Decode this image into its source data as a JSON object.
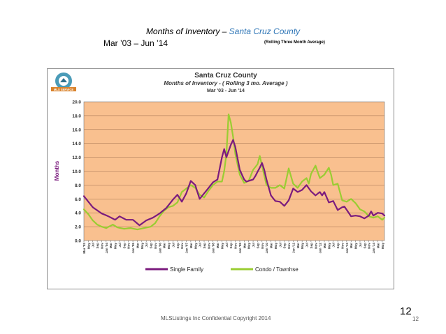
{
  "slide": {
    "title_prefix": "Months of Inventory – ",
    "title_county": "Santa Cruz County",
    "date_range": "Mar ’03 – Jun ’14",
    "rolling_note": "(Rolling Three Month Average)",
    "footer": "MLSListings Inc Confidential Copyright 2014",
    "page_number_large": "12",
    "page_number_small": "12"
  },
  "logo": {
    "text": "MLS SERVICE"
  },
  "colors": {
    "plot_bg": "#F9C08F",
    "single_family": "#7B1B7E",
    "condo": "#9ACD32",
    "grid": "#A07050"
  },
  "chart_data": {
    "type": "line",
    "title": "Santa Cruz County",
    "subtitle": "Months of Inventory - ( Rolling 3 mo. Average )",
    "subtitle2": "Mar '03 - Jun '14",
    "xlabel": "",
    "ylabel": "Months",
    "ylim": [
      0,
      20
    ],
    "yticks": [
      "0.0",
      "2.0",
      "4.0",
      "6.0",
      "8.0",
      "10.0",
      "12.0",
      "14.0",
      "16.0",
      "18.0",
      "20.0"
    ],
    "x_tick_labels": [
      "Mar '03",
      "May",
      "Jul",
      "Sep",
      "Nov",
      "Jan '04",
      "Mar",
      "May",
      "Jul",
      "Sep",
      "Nov",
      "Jan '05",
      "Mar",
      "May",
      "Jul",
      "Sep",
      "Nov",
      "Jan '06",
      "Mar",
      "May",
      "Jul",
      "Sep",
      "Nov",
      "Jan '07",
      "Mar",
      "May",
      "Jul",
      "Sep",
      "Nov",
      "Jan '08",
      "Mar",
      "May",
      "Jul",
      "Sep",
      "Nov",
      "Jan '09",
      "Mar",
      "May",
      "Jul",
      "Sep",
      "Nov",
      "Jan '10",
      "Mar",
      "May",
      "Jul",
      "Sep",
      "Nov",
      "Jan '11",
      "Mar",
      "May",
      "Jul",
      "Sep",
      "Nov",
      "Jan '12",
      "Mar",
      "May",
      "Jul",
      "Sep",
      "Nov",
      "Jan '13",
      "Mar",
      "May",
      "Jul",
      "Sep",
      "Nov",
      "Jan '14",
      "Mar",
      "May"
    ],
    "n_points": 136,
    "legend": "bottom",
    "series": [
      {
        "name": "Single Family",
        "color": "#7B1B7E",
        "key_points": [
          [
            0,
            6.4
          ],
          [
            4,
            4.8
          ],
          [
            8,
            3.9
          ],
          [
            11,
            3.5
          ],
          [
            14,
            3.0
          ],
          [
            16,
            3.5
          ],
          [
            19,
            3.0
          ],
          [
            22,
            3.0
          ],
          [
            25,
            2.2
          ],
          [
            28,
            2.9
          ],
          [
            31,
            3.3
          ],
          [
            34,
            3.9
          ],
          [
            37,
            4.7
          ],
          [
            40,
            5.9
          ],
          [
            42,
            6.6
          ],
          [
            44,
            5.6
          ],
          [
            46,
            6.8
          ],
          [
            48,
            8.6
          ],
          [
            50,
            8.0
          ],
          [
            52,
            6.0
          ],
          [
            54,
            6.8
          ],
          [
            56,
            7.6
          ],
          [
            58,
            8.4
          ],
          [
            60,
            8.8
          ],
          [
            62,
            12.0
          ],
          [
            63,
            13.2
          ],
          [
            64,
            12.0
          ],
          [
            66,
            13.8
          ],
          [
            67,
            14.5
          ],
          [
            68,
            13.5
          ],
          [
            70,
            10.2
          ],
          [
            72,
            8.8
          ],
          [
            73,
            8.5
          ],
          [
            74,
            8.6
          ],
          [
            76,
            8.8
          ],
          [
            77,
            9.3
          ],
          [
            79,
            10.5
          ],
          [
            80,
            11.2
          ],
          [
            81,
            10.2
          ],
          [
            82,
            8.8
          ],
          [
            84,
            6.5
          ],
          [
            86,
            5.7
          ],
          [
            88,
            5.6
          ],
          [
            90,
            5.0
          ],
          [
            92,
            5.8
          ],
          [
            94,
            7.5
          ],
          [
            96,
            7.0
          ],
          [
            98,
            7.3
          ],
          [
            100,
            8.0
          ],
          [
            102,
            7.1
          ],
          [
            104,
            6.5
          ],
          [
            106,
            7.0
          ],
          [
            107,
            6.5
          ],
          [
            108,
            7.0
          ],
          [
            110,
            5.5
          ],
          [
            112,
            5.7
          ],
          [
            114,
            4.4
          ],
          [
            116,
            4.8
          ],
          [
            117,
            4.9
          ],
          [
            120,
            3.5
          ],
          [
            122,
            3.6
          ],
          [
            124,
            3.5
          ],
          [
            126,
            3.2
          ],
          [
            128,
            3.6
          ],
          [
            129,
            4.2
          ],
          [
            130,
            3.6
          ],
          [
            132,
            4.0
          ],
          [
            134,
            3.9
          ],
          [
            135,
            3.6
          ]
        ]
      },
      {
        "name": "Condo / Townhse",
        "color": "#9ACD32",
        "key_points": [
          [
            0,
            4.5
          ],
          [
            2,
            3.8
          ],
          [
            4,
            2.9
          ],
          [
            6,
            2.3
          ],
          [
            8,
            2.0
          ],
          [
            10,
            1.8
          ],
          [
            13,
            2.3
          ],
          [
            15,
            1.9
          ],
          [
            18,
            1.7
          ],
          [
            21,
            1.8
          ],
          [
            24,
            1.6
          ],
          [
            27,
            1.8
          ],
          [
            30,
            2.0
          ],
          [
            32,
            2.5
          ],
          [
            34,
            3.5
          ],
          [
            36,
            4.3
          ],
          [
            38,
            4.8
          ],
          [
            40,
            5.0
          ],
          [
            42,
            5.5
          ],
          [
            44,
            7.0
          ],
          [
            46,
            7.5
          ],
          [
            48,
            8.0
          ],
          [
            50,
            7.6
          ],
          [
            52,
            6.6
          ],
          [
            54,
            6.2
          ],
          [
            56,
            7.2
          ],
          [
            58,
            8.0
          ],
          [
            60,
            8.5
          ],
          [
            62,
            8.5
          ],
          [
            63,
            10.0
          ],
          [
            64,
            12.5
          ],
          [
            65,
            18.2
          ],
          [
            66,
            17.0
          ],
          [
            67,
            15.0
          ],
          [
            68,
            12.5
          ],
          [
            70,
            9.5
          ],
          [
            72,
            8.3
          ],
          [
            74,
            8.6
          ],
          [
            76,
            10.2
          ],
          [
            78,
            11.0
          ],
          [
            79,
            12.2
          ],
          [
            80,
            10.8
          ],
          [
            82,
            8.0
          ],
          [
            84,
            7.6
          ],
          [
            86,
            7.6
          ],
          [
            88,
            8.0
          ],
          [
            90,
            7.5
          ],
          [
            92,
            10.4
          ],
          [
            94,
            8.2
          ],
          [
            96,
            7.6
          ],
          [
            98,
            8.5
          ],
          [
            100,
            9.0
          ],
          [
            101,
            8.2
          ],
          [
            102,
            9.6
          ],
          [
            104,
            10.8
          ],
          [
            106,
            9.0
          ],
          [
            108,
            9.5
          ],
          [
            110,
            10.5
          ],
          [
            111,
            9.5
          ],
          [
            112,
            8.0
          ],
          [
            114,
            8.2
          ],
          [
            116,
            5.8
          ],
          [
            118,
            5.6
          ],
          [
            120,
            6.0
          ],
          [
            122,
            5.4
          ],
          [
            124,
            4.5
          ],
          [
            126,
            4.2
          ],
          [
            128,
            3.5
          ],
          [
            130,
            3.3
          ],
          [
            132,
            3.5
          ],
          [
            134,
            3.0
          ],
          [
            135,
            3.3
          ]
        ]
      }
    ]
  }
}
